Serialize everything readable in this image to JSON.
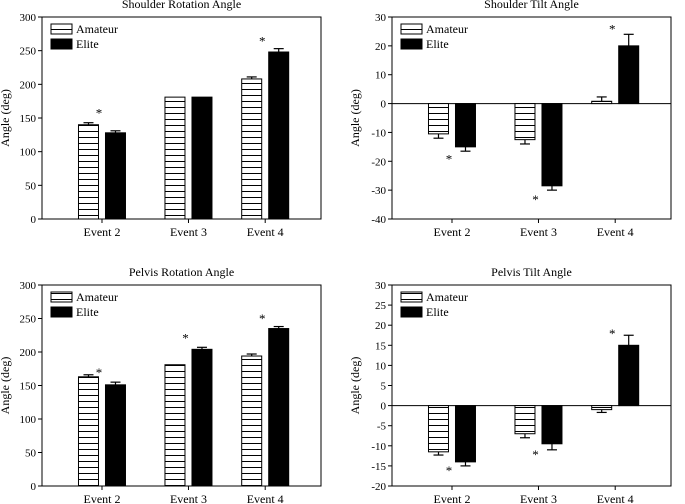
{
  "chart_data": [
    {
      "type": "bar",
      "title": "Shoulder Rotation Angle",
      "ylabel": "Angle (deg)",
      "xlabel": "",
      "categories": [
        "Event 2",
        "Event 3",
        "Event 4"
      ],
      "ylim": [
        0,
        300
      ],
      "yticks": [
        0,
        50,
        100,
        150,
        200,
        250,
        300
      ],
      "legend_position": "top-left",
      "series": [
        {
          "name": "Amateur",
          "pattern": "horizontal-stripes",
          "values": [
            140,
            181,
            208
          ],
          "errors": [
            3,
            0,
            3
          ]
        },
        {
          "name": "Elite",
          "pattern": "solid",
          "values": [
            128,
            181,
            248
          ],
          "errors": [
            3,
            0,
            5
          ]
        }
      ],
      "annotations": [
        {
          "text": "*",
          "category": "Event 2",
          "y": 158
        },
        {
          "text": "*",
          "category": "Event 4",
          "y": 265
        }
      ]
    },
    {
      "type": "bar",
      "title": "Shoulder Tilt Angle",
      "ylabel": "Angle (deg)",
      "xlabel": "",
      "categories": [
        "Event 2",
        "Event 3",
        "Event 4"
      ],
      "ylim": [
        -40,
        30
      ],
      "yticks": [
        -40,
        -30,
        -20,
        -10,
        0,
        10,
        20,
        30
      ],
      "legend_position": "top-left",
      "series": [
        {
          "name": "Amateur",
          "pattern": "horizontal-stripes",
          "values": [
            -10.5,
            -12.5,
            0.8
          ],
          "errors": [
            1.5,
            1.5,
            1.5
          ]
        },
        {
          "name": "Elite",
          "pattern": "solid",
          "values": [
            -15,
            -28.5,
            20
          ],
          "errors": [
            1.5,
            1.5,
            4
          ]
        }
      ],
      "annotations": [
        {
          "text": "*",
          "category": "Event 2",
          "y": -19
        },
        {
          "text": "*",
          "category": "Event 3",
          "y": -33
        },
        {
          "text": "*",
          "category": "Event 4",
          "y": 26
        }
      ]
    },
    {
      "type": "bar",
      "title": "Pelvis Rotation Angle",
      "ylabel": "Angle (deg)",
      "xlabel": "",
      "categories": [
        "Event 2",
        "Event 3",
        "Event 4"
      ],
      "ylim": [
        0,
        300
      ],
      "yticks": [
        0,
        50,
        100,
        150,
        200,
        250,
        300
      ],
      "legend_position": "top-left",
      "series": [
        {
          "name": "Amateur",
          "pattern": "horizontal-stripes",
          "values": [
            163,
            181,
            194
          ],
          "errors": [
            3,
            0,
            3
          ]
        },
        {
          "name": "Elite",
          "pattern": "solid",
          "values": [
            151,
            204,
            235
          ],
          "errors": [
            4,
            3,
            3
          ]
        }
      ],
      "annotations": [
        {
          "text": "*",
          "category": "Event 2",
          "y": 170
        },
        {
          "text": "*",
          "category": "Event 3",
          "y": 222
        },
        {
          "text": "*",
          "category": "Event 4",
          "y": 251
        }
      ]
    },
    {
      "type": "bar",
      "title": "Pelvis Tilt Angle",
      "ylabel": "Angle (deg)",
      "xlabel": "",
      "categories": [
        "Event 2",
        "Event 3",
        "Event 4"
      ],
      "ylim": [
        -20,
        30
      ],
      "yticks": [
        -20,
        -15,
        -10,
        -5,
        0,
        5,
        10,
        15,
        20,
        25,
        30
      ],
      "legend_position": "top-left",
      "series": [
        {
          "name": "Amateur",
          "pattern": "horizontal-stripes",
          "values": [
            -11.5,
            -7,
            -1
          ],
          "errors": [
            0.8,
            1,
            0.7
          ]
        },
        {
          "name": "Elite",
          "pattern": "solid",
          "values": [
            -14,
            -9.5,
            15
          ],
          "errors": [
            1,
            1.5,
            2.5
          ]
        }
      ],
      "annotations": [
        {
          "text": "*",
          "category": "Event 2",
          "y": -16
        },
        {
          "text": "*",
          "category": "Event 3",
          "y": -12
        },
        {
          "text": "*",
          "category": "Event 4",
          "y": 18
        }
      ]
    }
  ]
}
